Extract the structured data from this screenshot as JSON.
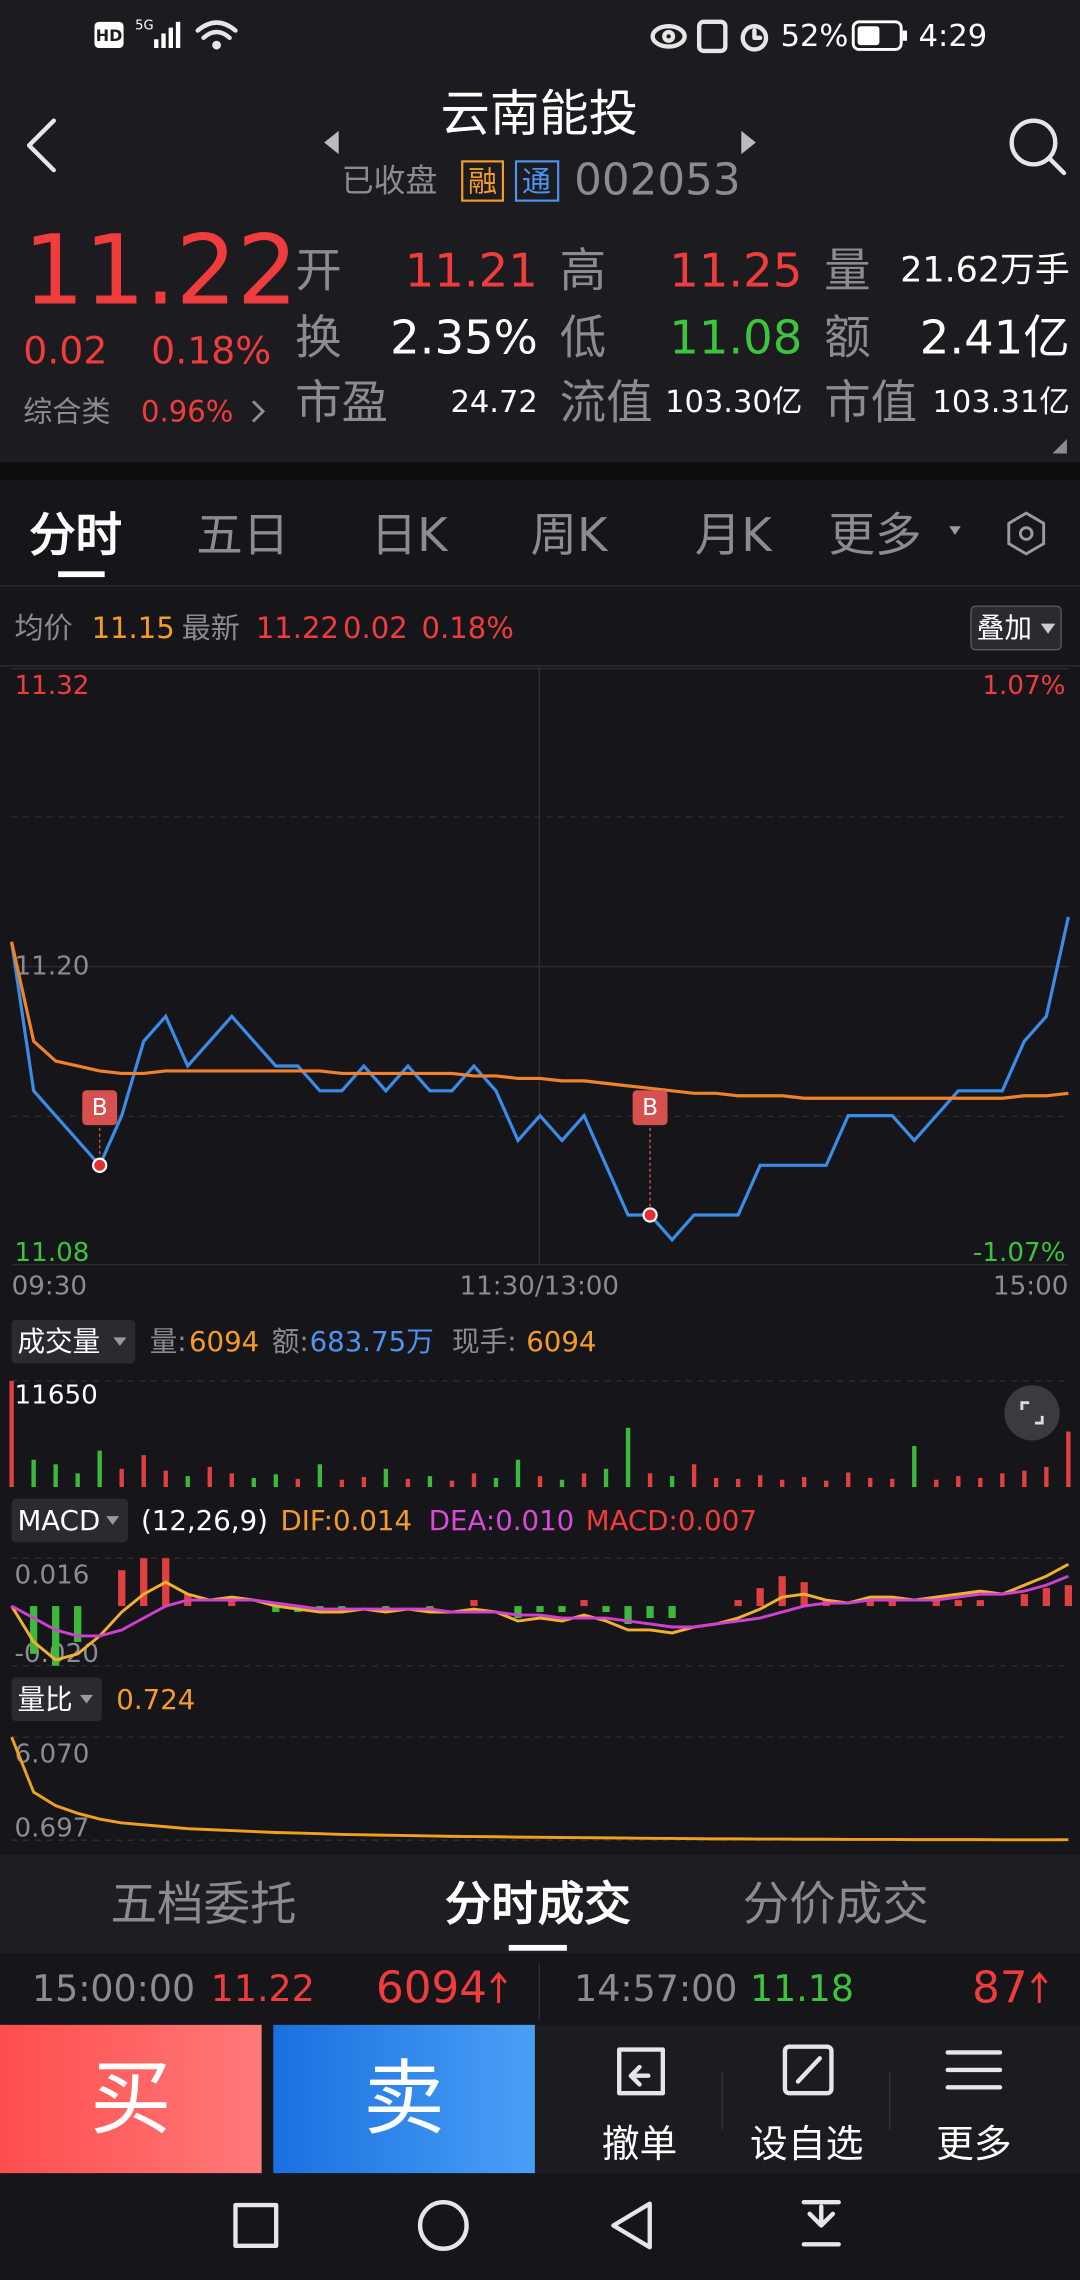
{
  "status_bar": {
    "hd": "HD",
    "network": "5G",
    "battery": "52%",
    "time": "4:29"
  },
  "header": {
    "title": "云南能投",
    "status": "已收盘",
    "tags": [
      "融",
      "通"
    ],
    "code": "002053"
  },
  "quote": {
    "price": "11.22",
    "change": "0.02",
    "change_pct": "0.18%",
    "sector": "综合类",
    "sector_pct": "0.96%",
    "fields": [
      [
        {
          "label": "开",
          "value": "11.21"
        },
        {
          "label": "高",
          "value": "11.25"
        },
        {
          "label": "量",
          "value": "21.62万手"
        }
      ],
      [
        {
          "label": "换",
          "value": "2.35%"
        },
        {
          "label": "低",
          "value": "11.08"
        },
        {
          "label": "额",
          "value": "2.41亿"
        }
      ],
      [
        {
          "label": "市盈",
          "value": "24.72"
        },
        {
          "label": "流值",
          "value": "103.30亿"
        },
        {
          "label": "市值",
          "value": "103.31亿"
        }
      ]
    ]
  },
  "tabs": [
    "分时",
    "五日",
    "日K",
    "周K",
    "月K",
    "更多"
  ],
  "summary": {
    "avg_label": "均价",
    "avg": "11.15",
    "latest_label": "最新",
    "latest": "11.22",
    "change": "0.02",
    "change_pct": "0.18%",
    "overlay": "叠加"
  },
  "price_chart": {
    "ylim": [
      11.08,
      11.32
    ],
    "yticks": [
      11.08,
      {
        "value": 11.2,
        "label": "11.20"
      },
      11.32
    ],
    "pct_labels": [
      "1.07%",
      "-1.07%"
    ],
    "xlabels": [
      "09:30",
      "11:30/13:00",
      "15:00"
    ],
    "markers": [
      "B",
      "B"
    ],
    "price": [
      11.21,
      11.15,
      11.14,
      11.13,
      11.12,
      11.14,
      11.17,
      11.18,
      11.16,
      11.17,
      11.18,
      11.17,
      11.16,
      11.16,
      11.15,
      11.15,
      11.16,
      11.15,
      11.16,
      11.15,
      11.15,
      11.16,
      11.15,
      11.13,
      11.14,
      11.13,
      11.14,
      11.12,
      11.1,
      11.1,
      11.09,
      11.1,
      11.1,
      11.1,
      11.12,
      11.12,
      11.12,
      11.12,
      11.14,
      11.14,
      11.14,
      11.13,
      11.14,
      11.15,
      11.15,
      11.15,
      11.17,
      11.18,
      11.22
    ],
    "average": [
      11.21,
      11.17,
      11.162,
      11.16,
      11.158,
      11.157,
      11.157,
      11.158,
      11.158,
      11.158,
      11.158,
      11.158,
      11.158,
      11.158,
      11.158,
      11.157,
      11.157,
      11.157,
      11.157,
      11.157,
      11.157,
      11.156,
      11.156,
      11.155,
      11.155,
      11.154,
      11.154,
      11.153,
      11.152,
      11.151,
      11.15,
      11.149,
      11.149,
      11.148,
      11.148,
      11.148,
      11.147,
      11.147,
      11.147,
      11.147,
      11.147,
      11.147,
      11.147,
      11.147,
      11.147,
      11.147,
      11.148,
      11.148,
      11.149
    ]
  },
  "volume": {
    "title": "成交量",
    "stats": [
      {
        "label": "量:",
        "value": "6094"
      },
      {
        "label": "额:",
        "value": "683.75万"
      },
      {
        "label": "现手:",
        "value": "6094"
      }
    ],
    "ylim": [
      0,
      11650
    ],
    "yticks": [
      11650
    ],
    "values": [
      11650,
      3000,
      2500,
      1500,
      4000,
      2000,
      3500,
      1800,
      1200,
      2200,
      1500,
      1000,
      1400,
      900,
      2500,
      800,
      1100,
      2000,
      900,
      1200,
      700,
      1500,
      1000,
      3000,
      1200,
      800,
      1500,
      2000,
      6500,
      1500,
      1200,
      2500,
      1000,
      900,
      1300,
      800,
      1100,
      700,
      1600,
      1000,
      900,
      4500,
      800,
      1200,
      1000,
      1500,
      1800,
      2200,
      6094
    ]
  },
  "macd": {
    "title": "MACD",
    "params": "(12,26,9)",
    "stats": [
      "DIF:0.014",
      "DEA:0.010",
      "MACD:0.007"
    ],
    "ylim": [
      -0.02,
      0.016
    ],
    "yticks": [
      {
        "value": -0.02,
        "label": "-0.020"
      },
      0.016
    ],
    "dif": [
      0,
      -0.012,
      -0.018,
      -0.016,
      -0.01,
      -0.002,
      0.004,
      0.008,
      0.004,
      0.002,
      0.003,
      0.002,
      0,
      -0.001,
      -0.002,
      -0.002,
      -0.001,
      -0.002,
      -0.001,
      -0.002,
      -0.002,
      -0.001,
      -0.002,
      -0.005,
      -0.004,
      -0.005,
      -0.003,
      -0.005,
      -0.008,
      -0.008,
      -0.009,
      -0.007,
      -0.006,
      -0.004,
      -0.001,
      0.003,
      0.004,
      0.002,
      0.001,
      0.003,
      0.003,
      0.002,
      0.003,
      0.004,
      0.005,
      0.004,
      0.007,
      0.01,
      0.014
    ],
    "dea": [
      0,
      -0.004,
      -0.008,
      -0.01,
      -0.01,
      -0.008,
      -0.004,
      0,
      0.002,
      0.002,
      0.002,
      0.002,
      0.001,
      0,
      -0.001,
      -0.001,
      -0.001,
      -0.001,
      -0.001,
      -0.001,
      -0.002,
      -0.002,
      -0.002,
      -0.003,
      -0.003,
      -0.004,
      -0.004,
      -0.004,
      -0.005,
      -0.006,
      -0.007,
      -0.007,
      -0.006,
      -0.005,
      -0.004,
      -0.002,
      0,
      0.001,
      0.001,
      0.002,
      0.002,
      0.002,
      0.002,
      0.003,
      0.004,
      0.004,
      0.005,
      0.007,
      0.01
    ],
    "hist": [
      0,
      -0.016,
      -0.02,
      -0.012,
      0,
      0.012,
      0.016,
      0.016,
      0.004,
      0,
      0.002,
      0,
      -0.002,
      -0.002,
      -0.002,
      -0.002,
      0,
      -0.002,
      0,
      -0.002,
      0,
      0.002,
      0,
      -0.004,
      -0.002,
      -0.002,
      0.002,
      -0.002,
      -0.006,
      -0.004,
      -0.004,
      0,
      0,
      0.002,
      0.006,
      0.01,
      0.008,
      0.002,
      0,
      0.002,
      0.002,
      0,
      0.002,
      0.002,
      0.002,
      0,
      0.004,
      0.006,
      0.007
    ]
  },
  "volume_ratio": {
    "title": "量比",
    "value": "0.724",
    "ylim": [
      0.697,
      6.07
    ],
    "yticks": [
      0.697,
      {
        "value": 6.07,
        "label": "6.070"
      }
    ],
    "values": [
      6.07,
      3.2,
      2.5,
      2.1,
      1.8,
      1.6,
      1.5,
      1.4,
      1.3,
      1.25,
      1.2,
      1.15,
      1.1,
      1.07,
      1.04,
      1.0,
      0.98,
      0.96,
      0.94,
      0.92,
      0.9,
      0.89,
      0.88,
      0.86,
      0.85,
      0.84,
      0.83,
      0.82,
      0.81,
      0.8,
      0.79,
      0.78,
      0.77,
      0.77,
      0.76,
      0.76,
      0.75,
      0.75,
      0.74,
      0.74,
      0.74,
      0.73,
      0.73,
      0.73,
      0.73,
      0.72,
      0.72,
      0.72,
      0.724
    ]
  },
  "trade_tabs": [
    "五档委托",
    "分时成交",
    "分价成交"
  ],
  "trades": [
    [
      "15:00:00",
      "11.22",
      "6094"
    ],
    [
      "14:57:00",
      "11.18",
      "87"
    ]
  ],
  "actions": {
    "buy": "买",
    "sell": "卖",
    "buttons": [
      "撤单",
      "设自选",
      "更多"
    ]
  }
}
